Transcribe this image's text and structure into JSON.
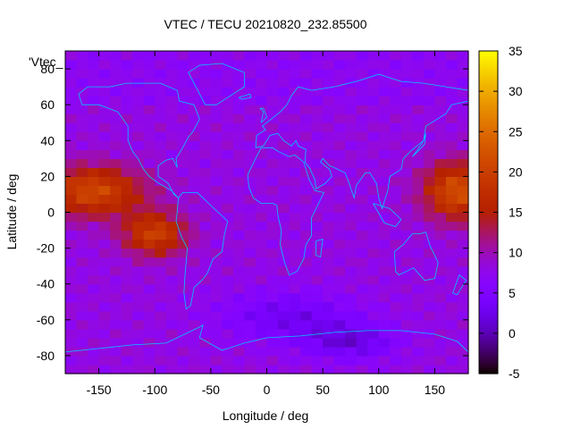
{
  "chart_data": {
    "type": "heatmap",
    "title": "VTEC / TECU 20210820_232.85500",
    "xlabel": "Longitude / deg",
    "ylabel": "Latitude / deg",
    "key_label": "'Vtec_",
    "xlim": [
      -180,
      180
    ],
    "ylim": [
      -90,
      90
    ],
    "xticks": [
      -150,
      -100,
      -50,
      0,
      50,
      100,
      150
    ],
    "yticks": [
      -80,
      -60,
      -40,
      -20,
      0,
      20,
      40,
      60,
      80
    ],
    "colorbar": {
      "min": -5,
      "max": 35,
      "ticks": [
        35,
        30,
        25,
        20,
        15,
        10,
        5,
        0,
        -5
      ]
    },
    "grid_step_lon": 10,
    "grid_step_lat": 5,
    "palette": "gnuplot-rgbformulae-7-5-15",
    "coastline_color": "#00c8ff",
    "regions": [
      {
        "name": "background",
        "value": 8
      },
      {
        "name": "high-latitude-north",
        "lon": [
          -180,
          180
        ],
        "lat": [
          60,
          90
        ],
        "value": 7
      },
      {
        "name": "pacific-equatorial-crest",
        "lon_center": -155,
        "lat_center": 12,
        "lon_sigma": 45,
        "lat_sigma": 14,
        "value": 21
      },
      {
        "name": "south-america-crest",
        "lon_center": -100,
        "lat_center": -12,
        "lon_sigma": 28,
        "lat_sigma": 12,
        "value": 20
      },
      {
        "name": "west-pacific-crest",
        "lon_center": 170,
        "lat_center": 12,
        "lon_sigma": 30,
        "lat_sigma": 16,
        "value": 22
      },
      {
        "name": "southern-trough",
        "lon_center": 20,
        "lat_center": -58,
        "lon_sigma": 60,
        "lat_sigma": 14,
        "value": 3
      },
      {
        "name": "antarctic-trough",
        "lon_center": 75,
        "lat_center": -72,
        "lon_sigma": 40,
        "lat_sigma": 10,
        "value": 2
      }
    ]
  }
}
